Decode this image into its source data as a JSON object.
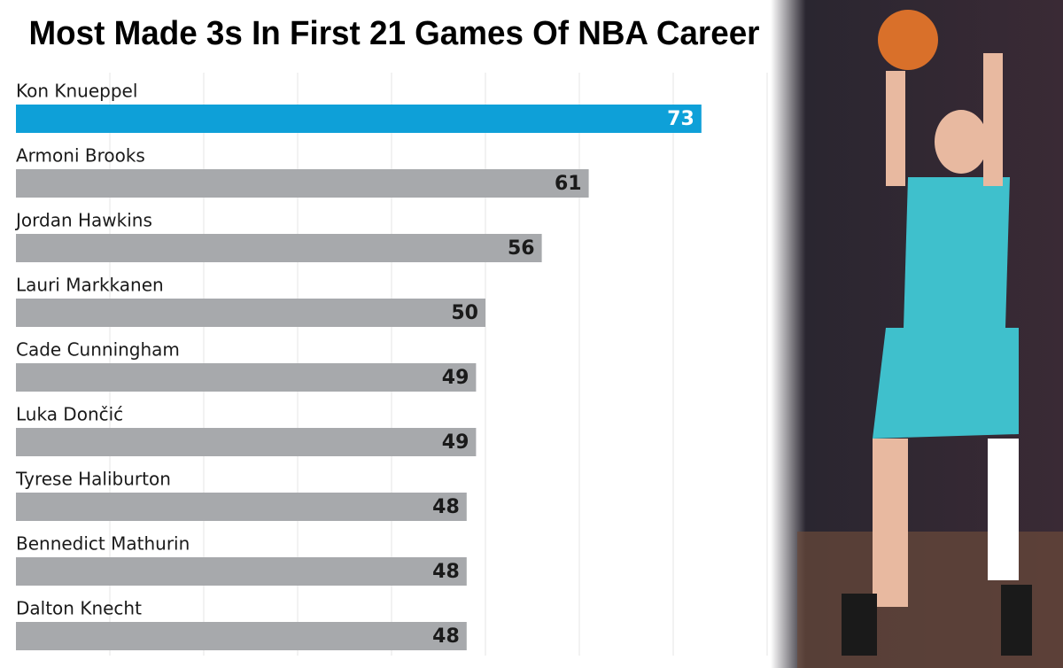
{
  "chart_data": {
    "type": "bar",
    "orientation": "horizontal",
    "title": "Most Made 3s In First 21 Games Of NBA Career",
    "categories": [
      "Kon Knueppel",
      "Armoni Brooks",
      "Jordan Hawkins",
      "Lauri Markkanen",
      "Cade Cunningham",
      "Luka Dončić",
      "Tyrese Haliburton",
      "Bennedict Mathurin",
      "Dalton Knecht"
    ],
    "values": [
      73,
      61,
      56,
      50,
      49,
      49,
      48,
      48,
      48
    ],
    "colors": [
      "#0ea0d8",
      "#a7a9ac",
      "#a7a9ac",
      "#a7a9ac",
      "#a7a9ac",
      "#a7a9ac",
      "#a7a9ac",
      "#a7a9ac",
      "#a7a9ac"
    ],
    "label_colors": [
      "#ffffff",
      "#1a1a1a",
      "#1a1a1a",
      "#1a1a1a",
      "#1a1a1a",
      "#1a1a1a",
      "#1a1a1a",
      "#1a1a1a",
      "#1a1a1a"
    ],
    "xlim": [
      0,
      80
    ],
    "xticks": [
      10,
      20,
      30,
      40,
      50,
      60,
      70,
      80
    ],
    "show_tick_labels": false,
    "grid": true
  }
}
